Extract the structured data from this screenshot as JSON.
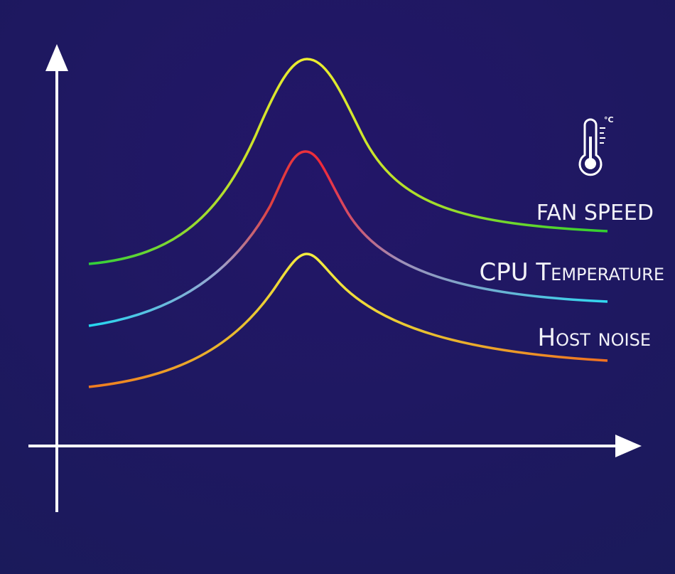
{
  "legend": {
    "items": [
      {
        "label": "FAN SPEED"
      },
      {
        "label": "CPU Temperature"
      },
      {
        "label": "Host noise"
      }
    ]
  },
  "icon": {
    "unit": "°C"
  }
}
